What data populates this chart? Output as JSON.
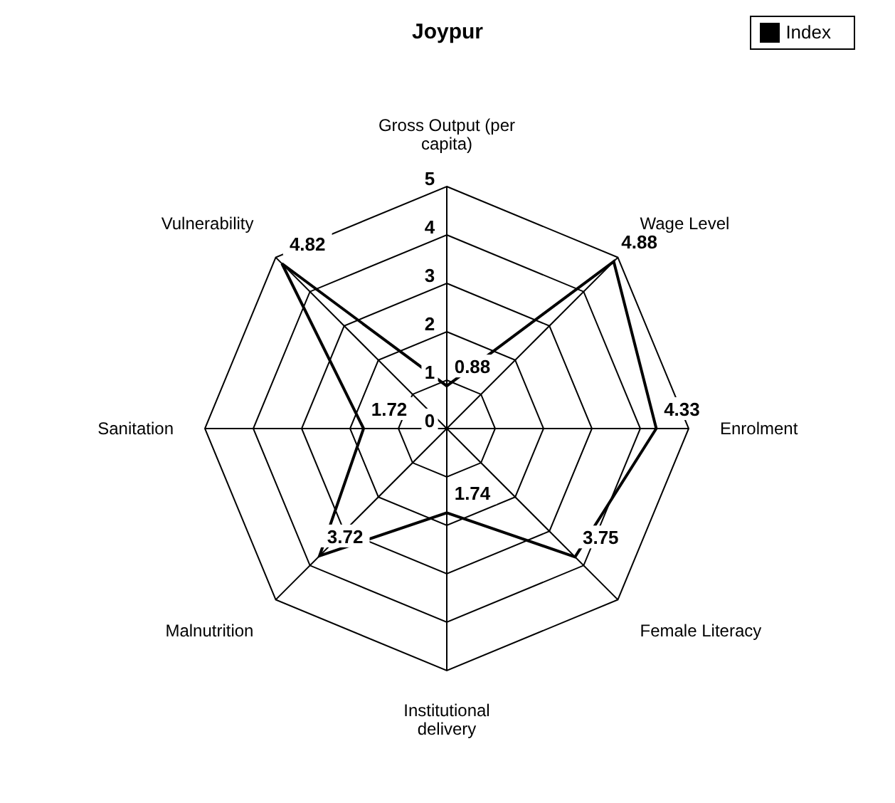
{
  "chart_data": {
    "type": "radar",
    "title": "Joypur",
    "categories": [
      "Gross Output (per capita)",
      "Wage Level",
      "Enrolment",
      "Female Literacy",
      "Institutional delivery",
      "Malnutrition",
      "Sanitation",
      "Vulnerability"
    ],
    "series": [
      {
        "name": "Index",
        "color": "#000000",
        "values": [
          0.88,
          4.88,
          4.33,
          3.75,
          1.74,
          3.72,
          1.72,
          4.82
        ]
      }
    ],
    "ylim": [
      0,
      5
    ],
    "yticks": [
      0,
      1,
      2,
      3,
      4,
      5
    ],
    "data_labels": true,
    "legend": "top right"
  }
}
